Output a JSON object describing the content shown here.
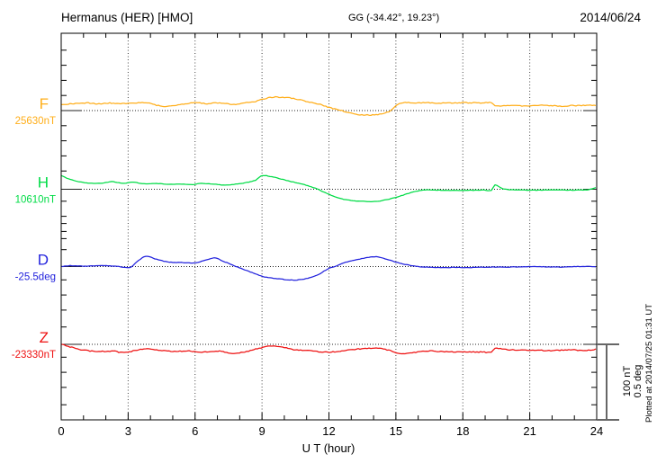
{
  "header": {
    "station": "Hermanus (HER)  [HMO]",
    "coords": "GG (-34.42°,  19.23°)",
    "date": "2014/06/24"
  },
  "xaxis": {
    "label": "U T (hour)",
    "tick_labels": [
      "0",
      "3",
      "6",
      "9",
      "12",
      "15",
      "18",
      "21",
      "24"
    ],
    "tick_hours": [
      0,
      3,
      6,
      9,
      12,
      15,
      18,
      21,
      24
    ]
  },
  "scalebar": {
    "nt_label": "100 nT",
    "deg_label": "0.5 deg"
  },
  "footnote": "Plotted at 2014/07/25 01:31 UT",
  "chart_data": {
    "type": "line",
    "title": "Hermanus (HER) [HMO] magnetogram for 2014/06/24",
    "xlabel": "U T (hour)",
    "x_range": [
      0,
      24
    ],
    "grid": "dotted vertical lines every 3 h; dotted horizontal baseline per trace",
    "legend_position": "left margin (per-panel labels)",
    "scale_bar": {
      "field": "100 nT per 84 px",
      "declination": "0.5 deg per 84 px"
    },
    "series": [
      {
        "id": "F",
        "label": "F",
        "baseline_label": "25630nT",
        "baseline": 25630,
        "unit": "nT",
        "color": "#FFAE1A",
        "noise": 1.1,
        "offsets": [
          [
            0,
            8.3
          ],
          [
            0.7,
            9.5
          ],
          [
            1.2,
            10.1
          ],
          [
            1.7,
            9.0
          ],
          [
            2.2,
            9.8
          ],
          [
            2.7,
            9.3
          ],
          [
            3.2,
            9.8
          ],
          [
            3.6,
            10.7
          ],
          [
            3.9,
            10.1
          ],
          [
            4.3,
            7.0
          ],
          [
            4.7,
            5.4
          ],
          [
            5.2,
            7.5
          ],
          [
            5.7,
            9.5
          ],
          [
            6.2,
            10.1
          ],
          [
            6.6,
            9.0
          ],
          [
            7.0,
            10.1
          ],
          [
            7.4,
            9.3
          ],
          [
            7.8,
            7.7
          ],
          [
            8.2,
            9.8
          ],
          [
            8.7,
            12.0
          ],
          [
            9.1,
            15.5
          ],
          [
            9.5,
            17.9
          ],
          [
            10.0,
            17.3
          ],
          [
            10.5,
            15.5
          ],
          [
            11.0,
            11.9
          ],
          [
            11.5,
            8.9
          ],
          [
            12.0,
            4.2
          ],
          [
            12.5,
            0.6
          ],
          [
            12.9,
            -3.0
          ],
          [
            13.4,
            -5.4
          ],
          [
            13.8,
            -6.0
          ],
          [
            14.3,
            -4.8
          ],
          [
            14.7,
            -1.2
          ],
          [
            15.0,
            6.5
          ],
          [
            15.3,
            10.7
          ],
          [
            15.8,
            10.1
          ],
          [
            16.5,
            10.4
          ],
          [
            17.2,
            9.8
          ],
          [
            18.0,
            10.4
          ],
          [
            18.8,
            10.1
          ],
          [
            19.3,
            10.4
          ],
          [
            19.45,
            6.0
          ],
          [
            20.0,
            6.5
          ],
          [
            21.0,
            6.3
          ],
          [
            21.7,
            7.0
          ],
          [
            22.4,
            6.0
          ],
          [
            23.2,
            6.8
          ],
          [
            24.0,
            7.1
          ]
        ]
      },
      {
        "id": "H",
        "label": "H",
        "baseline_label": "10610nT",
        "baseline": 10610,
        "unit": "nT",
        "color": "#00DC46",
        "noise": 0.5,
        "offsets": [
          [
            0,
            17.9
          ],
          [
            0.4,
            13.1
          ],
          [
            0.9,
            9.5
          ],
          [
            1.4,
            7.7
          ],
          [
            1.9,
            8.3
          ],
          [
            2.3,
            10.1
          ],
          [
            2.8,
            7.7
          ],
          [
            3.2,
            9.5
          ],
          [
            3.7,
            7.1
          ],
          [
            4.2,
            7.7
          ],
          [
            4.8,
            6.5
          ],
          [
            5.3,
            7.1
          ],
          [
            5.8,
            6.0
          ],
          [
            6.3,
            7.7
          ],
          [
            6.9,
            6.5
          ],
          [
            7.4,
            5.4
          ],
          [
            7.9,
            7.1
          ],
          [
            8.3,
            8.9
          ],
          [
            8.7,
            11.9
          ],
          [
            9.0,
            17.9
          ],
          [
            9.4,
            16.7
          ],
          [
            9.9,
            13.1
          ],
          [
            10.4,
            9.5
          ],
          [
            10.9,
            6.0
          ],
          [
            11.4,
            1.2
          ],
          [
            11.9,
            -5.4
          ],
          [
            12.4,
            -11.3
          ],
          [
            13.0,
            -14.9
          ],
          [
            13.6,
            -16.1
          ],
          [
            14.1,
            -16.1
          ],
          [
            14.7,
            -13.1
          ],
          [
            15.2,
            -8.9
          ],
          [
            15.7,
            -4.2
          ],
          [
            16.2,
            -1.2
          ],
          [
            17.0,
            -1.2
          ],
          [
            18.0,
            -1.5
          ],
          [
            19.0,
            -1.2
          ],
          [
            19.3,
            -1.2
          ],
          [
            19.42,
            5.4
          ],
          [
            19.6,
            3.6
          ],
          [
            19.8,
            0.6
          ],
          [
            20.2,
            -0.6
          ],
          [
            21.0,
            -1.2
          ],
          [
            22.0,
            -0.9
          ],
          [
            23.0,
            -1.2
          ],
          [
            23.6,
            -0.6
          ],
          [
            24.0,
            2.4
          ]
        ]
      },
      {
        "id": "D",
        "label": "D",
        "baseline_label": "-25.5deg",
        "baseline": -25.5,
        "unit": "deg",
        "color": "#2222DD",
        "noise": 0.5,
        "offsets": [
          [
            0,
            0.0
          ],
          [
            0.4,
            0.006
          ],
          [
            1.0,
            0.003
          ],
          [
            1.7,
            0.006
          ],
          [
            2.4,
            0.003
          ],
          [
            2.9,
            -0.006
          ],
          [
            3.1,
            -0.006
          ],
          [
            3.4,
            0.033
          ],
          [
            3.8,
            0.068
          ],
          [
            4.2,
            0.051
          ],
          [
            4.8,
            0.03
          ],
          [
            5.4,
            0.027
          ],
          [
            6.0,
            0.024
          ],
          [
            6.4,
            0.039
          ],
          [
            6.9,
            0.057
          ],
          [
            7.3,
            0.033
          ],
          [
            7.7,
            0.009
          ],
          [
            8.1,
            -0.015
          ],
          [
            8.6,
            -0.042
          ],
          [
            9.1,
            -0.068
          ],
          [
            9.7,
            -0.08
          ],
          [
            10.3,
            -0.089
          ],
          [
            10.9,
            -0.083
          ],
          [
            11.5,
            -0.054
          ],
          [
            12.0,
            -0.012
          ],
          [
            12.3,
            0.003
          ],
          [
            12.8,
            0.03
          ],
          [
            13.4,
            0.051
          ],
          [
            14.1,
            0.065
          ],
          [
            14.6,
            0.048
          ],
          [
            15.0,
            0.03
          ],
          [
            15.5,
            0.012
          ],
          [
            16.0,
            0.0
          ],
          [
            16.8,
            -0.006
          ],
          [
            17.6,
            -0.006
          ],
          [
            18.5,
            -0.006
          ],
          [
            19.4,
            -0.003
          ],
          [
            20.3,
            -0.003
          ],
          [
            21.2,
            0.0
          ],
          [
            22.2,
            -0.003
          ],
          [
            23.1,
            0.0
          ],
          [
            24.0,
            0.0
          ]
        ]
      },
      {
        "id": "Z",
        "label": "Z",
        "baseline_label": "-23330nT",
        "baseline": -23330,
        "unit": "nT",
        "color": "#EE1111",
        "noise": 1.1,
        "offsets": [
          [
            0,
            0.0
          ],
          [
            0.3,
            -2.4
          ],
          [
            1.0,
            -7.7
          ],
          [
            1.7,
            -9.5
          ],
          [
            2.3,
            -8.9
          ],
          [
            2.7,
            -10.7
          ],
          [
            3.1,
            -9.5
          ],
          [
            3.6,
            -6.5
          ],
          [
            4.0,
            -6.0
          ],
          [
            4.5,
            -8.3
          ],
          [
            5.0,
            -9.5
          ],
          [
            5.7,
            -8.9
          ],
          [
            6.3,
            -10.1
          ],
          [
            7.0,
            -8.9
          ],
          [
            7.7,
            -11.9
          ],
          [
            8.3,
            -9.5
          ],
          [
            9.0,
            -4.2
          ],
          [
            9.5,
            -1.8
          ],
          [
            9.9,
            -3.6
          ],
          [
            10.4,
            -7.1
          ],
          [
            11.0,
            -8.3
          ],
          [
            11.7,
            -10.1
          ],
          [
            12.2,
            -10.1
          ],
          [
            12.8,
            -7.7
          ],
          [
            13.4,
            -6.0
          ],
          [
            14.0,
            -4.8
          ],
          [
            14.5,
            -6.5
          ],
          [
            15.0,
            -10.7
          ],
          [
            15.3,
            -12.5
          ],
          [
            15.8,
            -10.7
          ],
          [
            16.4,
            -8.9
          ],
          [
            17.1,
            -9.5
          ],
          [
            18.0,
            -10.1
          ],
          [
            18.8,
            -10.1
          ],
          [
            19.3,
            -10.1
          ],
          [
            19.45,
            -4.8
          ],
          [
            19.8,
            -6.5
          ],
          [
            20.4,
            -7.7
          ],
          [
            21.2,
            -7.7
          ],
          [
            22.0,
            -8.3
          ],
          [
            22.8,
            -7.1
          ],
          [
            23.4,
            -8.3
          ],
          [
            24.0,
            -6.5
          ]
        ]
      }
    ]
  }
}
